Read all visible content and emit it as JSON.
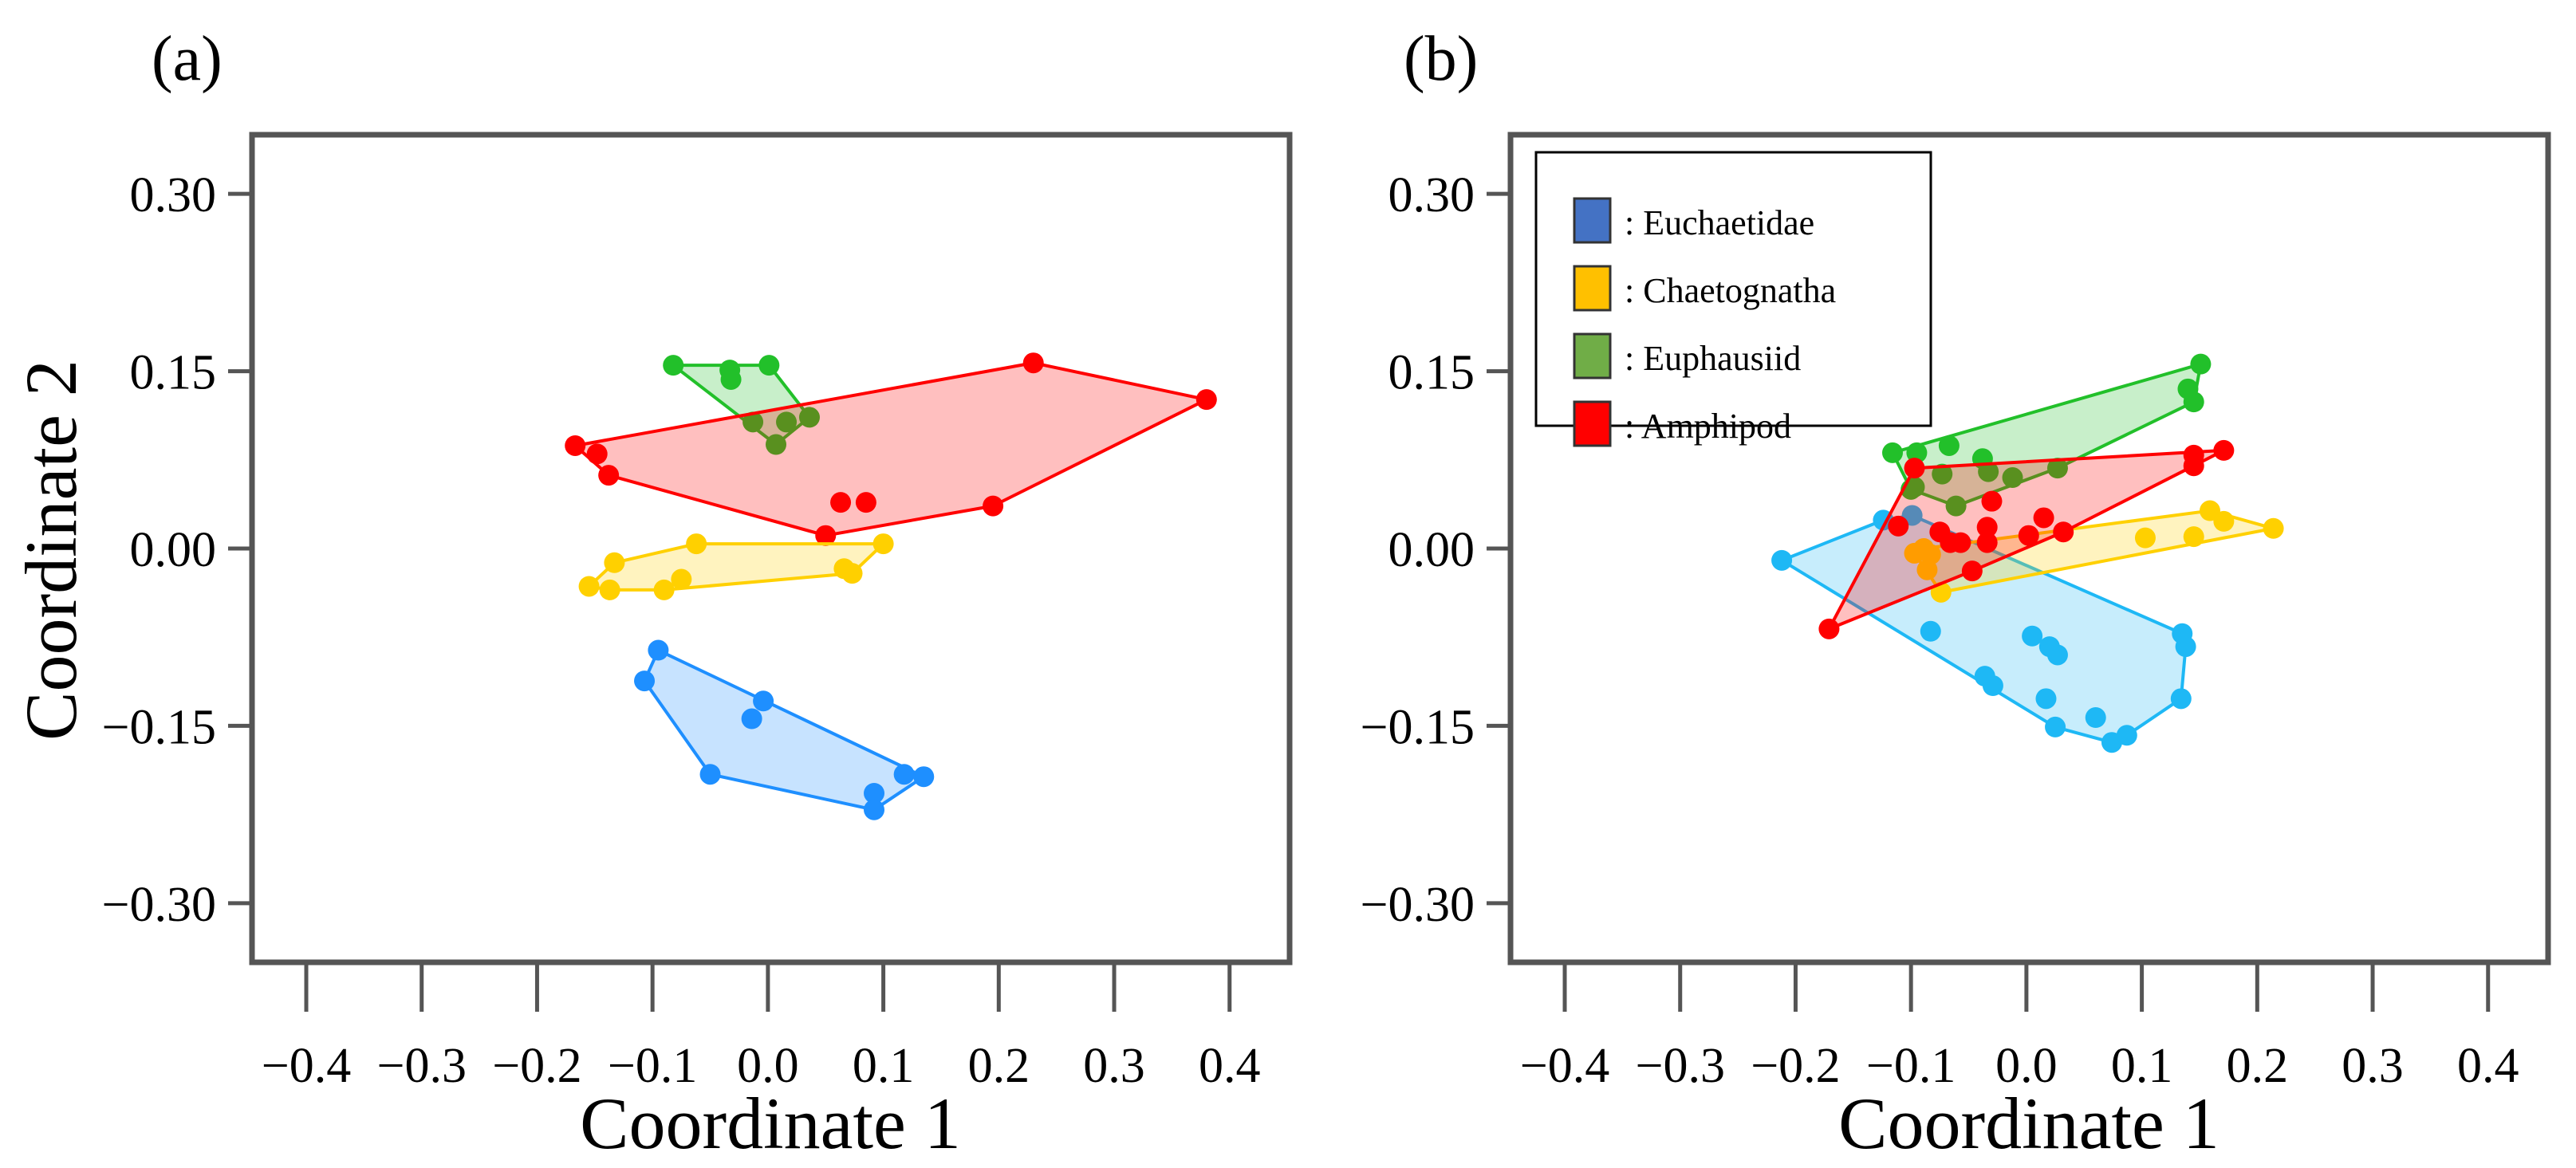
{
  "chart_data": [
    {
      "type": "scatter",
      "panel_label": "(a)",
      "xlabel": "Coordinate 1",
      "ylabel": "Coordinate 2",
      "xlim": [
        -0.447,
        0.452
      ],
      "ylim": [
        -0.35,
        0.35
      ],
      "xticks": [
        "−0.4",
        "−0.3",
        "−0.2",
        "−0.1",
        "0.0",
        "0.1",
        "0.2",
        "0.3",
        "0.4"
      ],
      "xtick_values": [
        -0.4,
        -0.3,
        -0.2,
        -0.1,
        0,
        0.1,
        0.2,
        0.3,
        0.4
      ],
      "yticks": [
        "0.30",
        "0.15",
        "0.00",
        "−0.15",
        "−0.30"
      ],
      "ytick_values": [
        0.3,
        0.15,
        0,
        -0.15,
        -0.3
      ],
      "grid": false,
      "hulls": true,
      "series": [
        {
          "name": "Euphausiid",
          "color": "#22C02A",
          "points": [
            [
              -0.082,
              0.155
            ],
            [
              -0.033,
              0.151
            ],
            [
              -0.032,
              0.143
            ],
            [
              0.001,
              0.155
            ],
            [
              -0.013,
              0.107
            ],
            [
              0.016,
              0.107
            ],
            [
              0.036,
              0.111
            ],
            [
              0.007,
              0.088
            ]
          ]
        },
        {
          "name": "Amphipod",
          "color": "#FF0000",
          "points": [
            [
              -0.167,
              0.087
            ],
            [
              -0.148,
              0.08
            ],
            [
              -0.138,
              0.062
            ],
            [
              0.05,
              0.011
            ],
            [
              0.063,
              0.039
            ],
            [
              0.085,
              0.039
            ],
            [
              0.195,
              0.036
            ],
            [
              0.23,
              0.157
            ],
            [
              0.38,
              0.126
            ]
          ]
        },
        {
          "name": "Chaetognatha",
          "color": "#FFD000",
          "points": [
            [
              -0.155,
              -0.032
            ],
            [
              -0.137,
              -0.035
            ],
            [
              -0.133,
              -0.012
            ],
            [
              -0.09,
              -0.035
            ],
            [
              -0.075,
              -0.026
            ],
            [
              -0.062,
              0.004
            ],
            [
              0.066,
              -0.017
            ],
            [
              0.073,
              -0.021
            ],
            [
              0.1,
              0.004
            ]
          ]
        },
        {
          "name": "Euchaetidae",
          "color": "#1E8FFF",
          "points": [
            [
              -0.095,
              -0.086
            ],
            [
              -0.107,
              -0.112
            ],
            [
              -0.004,
              -0.129
            ],
            [
              -0.014,
              -0.144
            ],
            [
              -0.05,
              -0.191
            ],
            [
              0.092,
              -0.207
            ],
            [
              0.092,
              -0.221
            ],
            [
              0.118,
              -0.191
            ],
            [
              0.135,
              -0.193
            ]
          ]
        }
      ]
    },
    {
      "type": "scatter",
      "panel_label": "(b)",
      "xlabel": "Coordinate 1",
      "ylabel": "",
      "xlim": [
        -0.447,
        0.452
      ],
      "ylim": [
        -0.35,
        0.35
      ],
      "xticks": [
        "−0.4",
        "−0.3",
        "−0.2",
        "−0.1",
        "0.0",
        "0.1",
        "0.2",
        "0.3",
        "0.4"
      ],
      "xtick_values": [
        -0.4,
        -0.3,
        -0.2,
        -0.1,
        0,
        0.1,
        0.2,
        0.3,
        0.4
      ],
      "yticks": [
        "0.30",
        "0.15",
        "0.00",
        "−0.15",
        "−0.30"
      ],
      "ytick_values": [
        0.3,
        0.15,
        0,
        -0.15,
        -0.3
      ],
      "grid": false,
      "hulls": true,
      "legend_position": "top-left",
      "legend": [
        {
          "label": ": Euchaetidae",
          "color": "#4472C4"
        },
        {
          "label": ": Chaetognatha",
          "color": "#FFC000"
        },
        {
          "label": ": Euphausiid",
          "color": "#70AD47"
        },
        {
          "label": ": Amphipod",
          "color": "#FF0000"
        }
      ],
      "series": [
        {
          "name": "Euchaetidae",
          "color": "#1EB8F5",
          "points": [
            [
              -0.212,
              -0.01
            ],
            [
              -0.124,
              0.024
            ],
            [
              -0.099,
              0.028
            ],
            [
              -0.083,
              -0.07
            ],
            [
              -0.036,
              -0.108
            ],
            [
              -0.029,
              -0.116
            ],
            [
              0.005,
              -0.074
            ],
            [
              0.02,
              -0.083
            ],
            [
              0.027,
              -0.09
            ],
            [
              0.017,
              -0.127
            ],
            [
              0.025,
              -0.151
            ],
            [
              0.06,
              -0.143
            ],
            [
              0.074,
              -0.164
            ],
            [
              0.087,
              -0.158
            ],
            [
              0.135,
              -0.072
            ],
            [
              0.138,
              -0.083
            ],
            [
              0.134,
              -0.127
            ]
          ]
        },
        {
          "name": "Chaetognatha",
          "color": "#FFD000",
          "points": [
            [
              0.214,
              0.017
            ],
            [
              0.159,
              0.032
            ],
            [
              0.171,
              0.023
            ],
            [
              0.145,
              0.01
            ],
            [
              0.103,
              0.009
            ],
            [
              -0.097,
              -0.004
            ],
            [
              -0.083,
              -0.005
            ],
            [
              -0.086,
              -0.018
            ],
            [
              -0.074,
              -0.037
            ],
            [
              -0.089,
              0.0
            ]
          ]
        },
        {
          "name": "Euphausiid",
          "color": "#22C02A",
          "points": [
            [
              0.151,
              0.156
            ],
            [
              0.14,
              0.135
            ],
            [
              0.145,
              0.124
            ],
            [
              -0.116,
              0.081
            ],
            [
              -0.095,
              0.081
            ],
            [
              -0.067,
              0.087
            ],
            [
              -0.1,
              0.05
            ],
            [
              -0.073,
              0.063
            ],
            [
              -0.061,
              0.036
            ],
            [
              -0.038,
              0.076
            ],
            [
              -0.033,
              0.065
            ],
            [
              -0.012,
              0.06
            ],
            [
              0.027,
              0.068
            ],
            [
              -0.097,
              0.052
            ]
          ]
        },
        {
          "name": "Amphipod",
          "color": "#FF0000",
          "points": [
            [
              -0.171,
              -0.068
            ],
            [
              -0.097,
              0.068
            ],
            [
              -0.111,
              0.019
            ],
            [
              -0.075,
              0.014
            ],
            [
              -0.066,
              0.005
            ],
            [
              -0.057,
              0.005
            ],
            [
              -0.047,
              -0.019
            ],
            [
              -0.034,
              0.018
            ],
            [
              -0.034,
              0.005
            ],
            [
              -0.03,
              0.04
            ],
            [
              0.002,
              0.011
            ],
            [
              0.015,
              0.026
            ],
            [
              0.032,
              0.014
            ],
            [
              0.145,
              0.07
            ],
            [
              0.145,
              0.079
            ],
            [
              0.171,
              0.083
            ]
          ]
        }
      ]
    }
  ]
}
